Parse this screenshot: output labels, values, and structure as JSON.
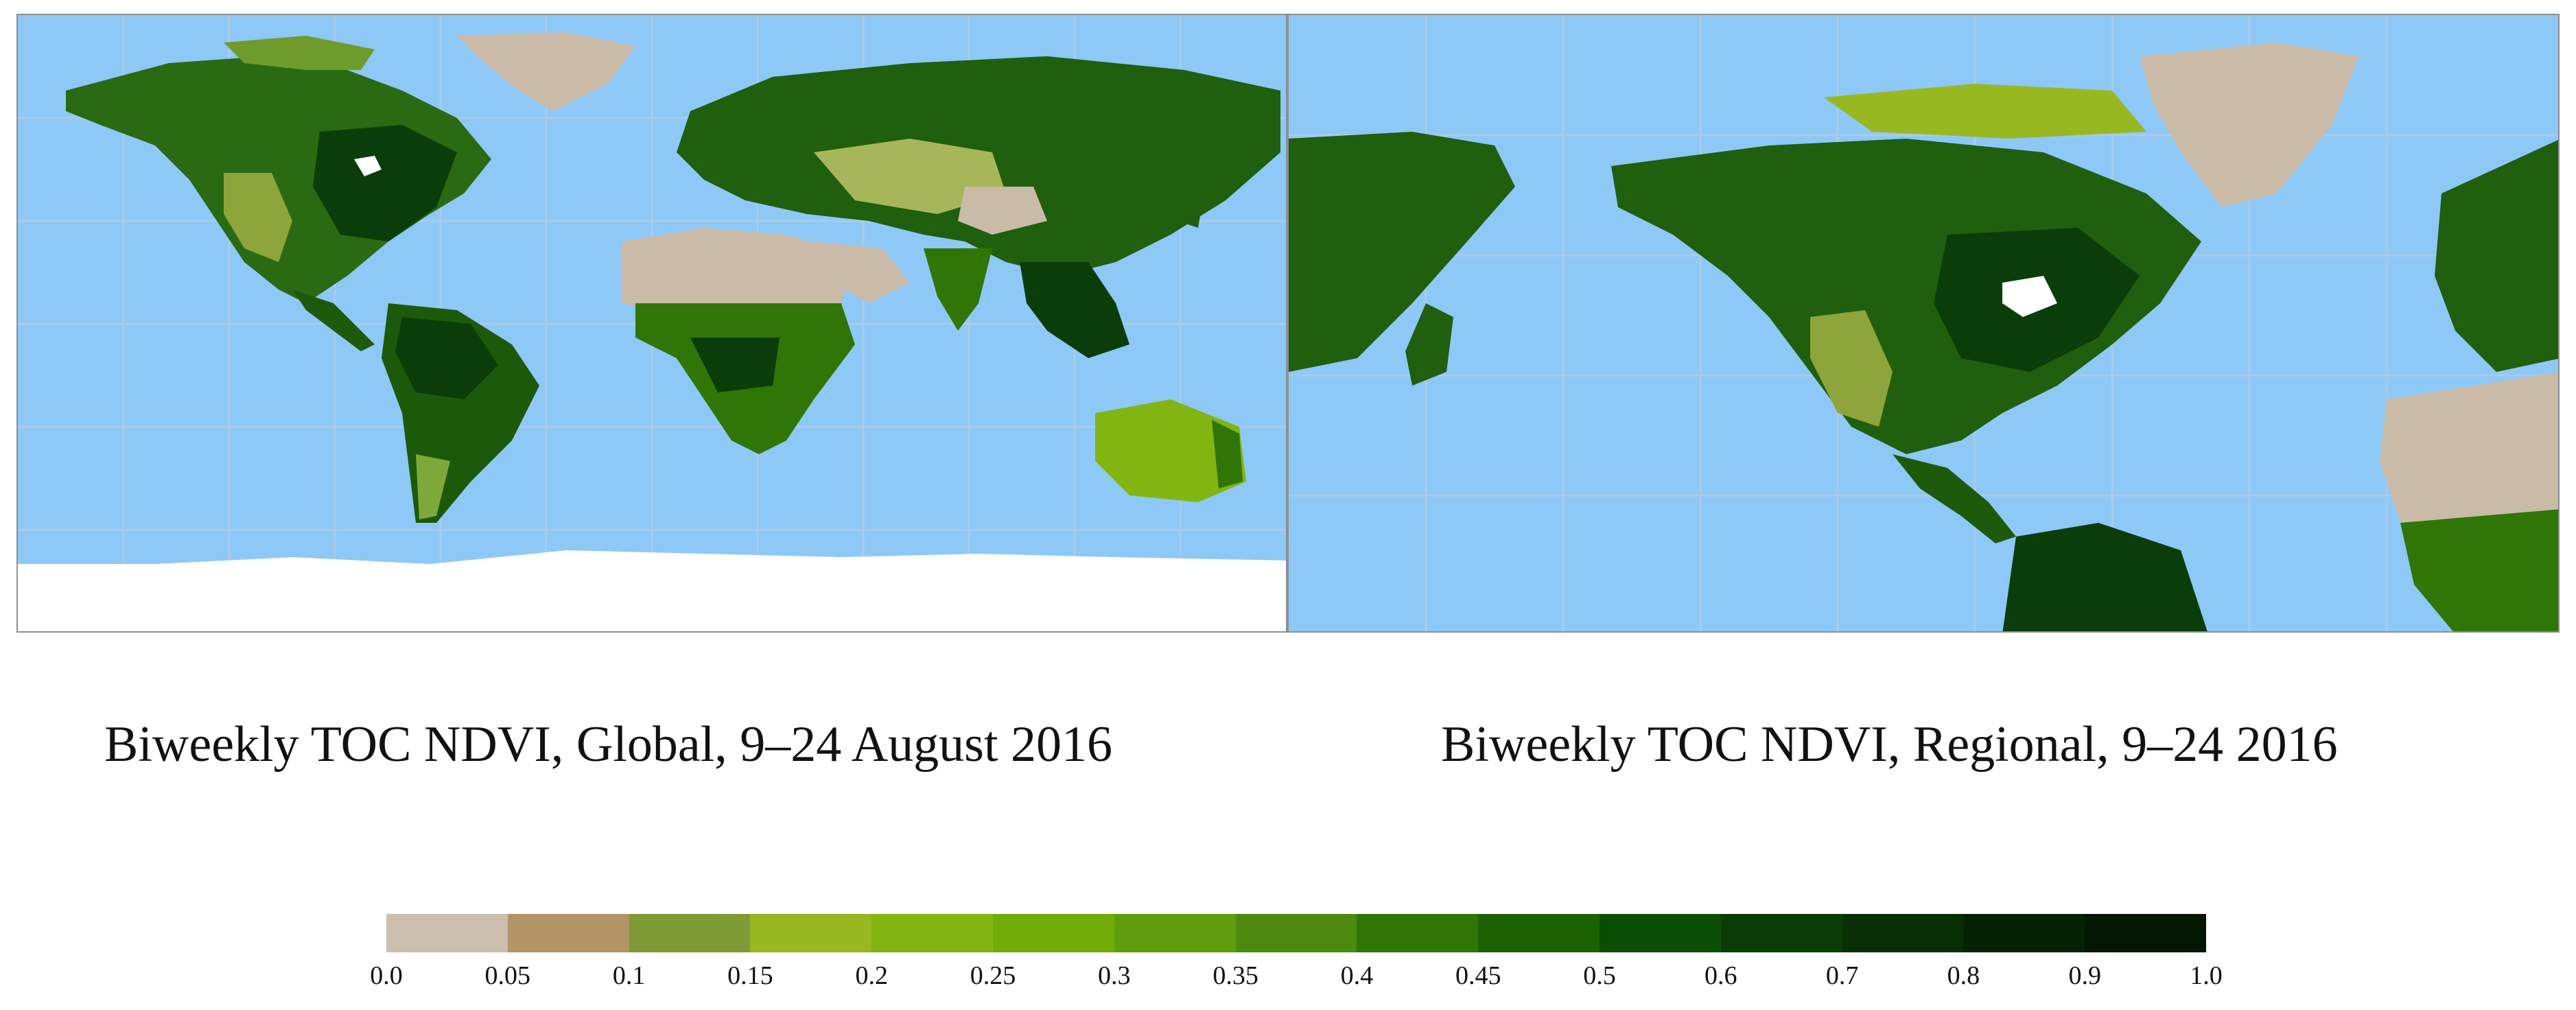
{
  "maps": [
    {
      "id": "global",
      "caption": "Biweekly TOC NDVI, Global, 9–24 August 2016"
    },
    {
      "id": "regional",
      "caption": "Biweekly TOC NDVI, Regional, 9–24 2016"
    }
  ],
  "legend": {
    "ticks": [
      "0.0",
      "0.05",
      "0.1",
      "0.15",
      "0.2",
      "0.25",
      "0.3",
      "0.35",
      "0.4",
      "0.45",
      "0.5",
      "0.6",
      "0.7",
      "0.8",
      "0.9",
      "1.0"
    ],
    "colors": [
      "#cdbfae",
      "#b39566",
      "#7d9a35",
      "#98b822",
      "#82b511",
      "#70ab08",
      "#5e9e0c",
      "#4c8a10",
      "#2f7606",
      "#1d6202",
      "#0c4d04",
      "#093d05",
      "#072e04",
      "#052204",
      "#031703"
    ]
  },
  "colors": {
    "ocean": "#8ec8f7",
    "ice": "#ffffff",
    "barren": "#c9bba7",
    "dense_vegetation": "#0b3d0b",
    "grid": "#a9cbe8"
  }
}
